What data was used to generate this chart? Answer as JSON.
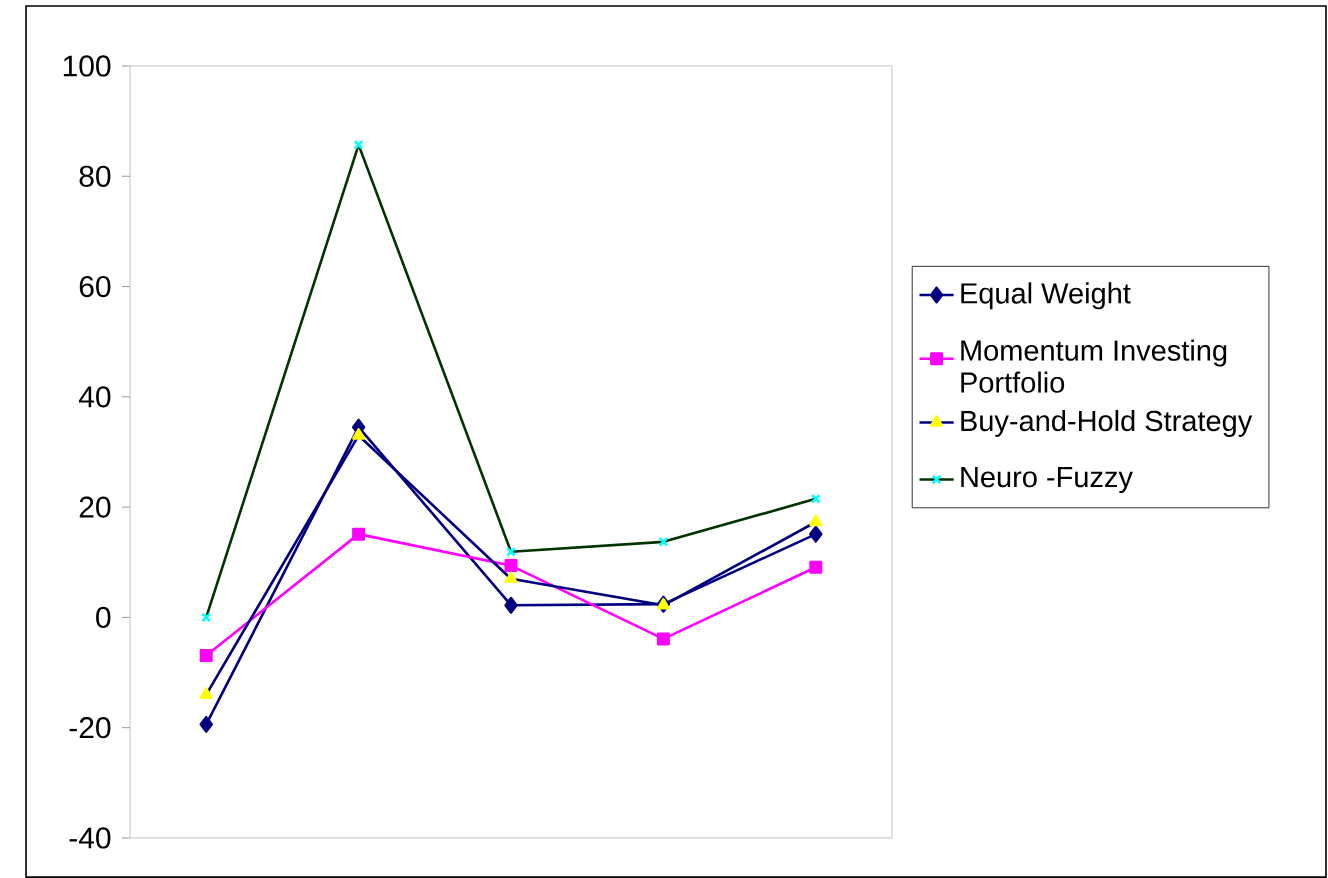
{
  "chart_data": {
    "type": "line",
    "categories": [
      null,
      null,
      null,
      null,
      null
    ],
    "ylim": [
      -40,
      100
    ],
    "yticks": [
      -40,
      -20,
      0,
      20,
      40,
      60,
      80,
      100
    ],
    "legend": "right",
    "grid": false,
    "line_style": "solid",
    "series": [
      {
        "name": "Equal Weight",
        "color": "#000080",
        "marker": "diamond",
        "values": [
          -19.4,
          34.5,
          2.2,
          2.4,
          15.1
        ]
      },
      {
        "name": "Momentum Investing Portfolio",
        "color": "#ff00ff",
        "marker": "square",
        "values": [
          -6.9,
          15.1,
          9.4,
          -3.9,
          9.1
        ]
      },
      {
        "name": "Buy-and-Hold Strategy",
        "color": "#ffff00",
        "marker": "triangle",
        "values": [
          -14,
          33,
          7,
          2.2,
          17.3
        ]
      },
      {
        "name": "Neuro -Fuzzy",
        "color": "#00ffff",
        "marker": "cross",
        "values": [
          0,
          85.7,
          11.9,
          13.7,
          21.5
        ]
      }
    ]
  }
}
